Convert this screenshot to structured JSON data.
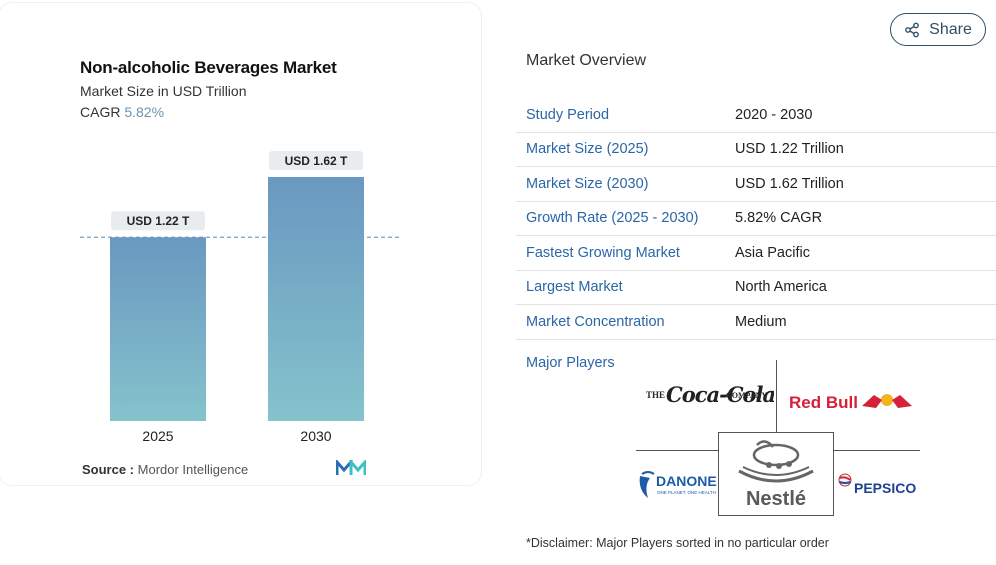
{
  "chart": {
    "title": "Non-alcoholic Beverages Market",
    "subtitle": "Market Size in USD Trillion",
    "cagr_label": "CAGR",
    "cagr_value": "5.82%",
    "source_label": "Source :",
    "source_value": "Mordor Intelligence",
    "colors": {
      "bar_top": "#6a98c0",
      "bar_bottom": "#84c3cc",
      "label_bg": "#e9ecef",
      "dash": "#7aa0c0"
    }
  },
  "chart_data": {
    "type": "bar",
    "categories": [
      "2025",
      "2030"
    ],
    "values": [
      1.22,
      1.62
    ],
    "data_labels": [
      "USD 1.22 T",
      "USD 1.62 T"
    ],
    "title": "Non-alcoholic Beverages Market",
    "subtitle": "Market Size in USD Trillion",
    "xlabel": "",
    "ylabel": "",
    "ylim": [
      0,
      1.62
    ],
    "grid": false,
    "reference_line": {
      "value": 1.22,
      "style": "dashed"
    }
  },
  "share": {
    "label": "Share",
    "icon": "share-icon"
  },
  "overview": {
    "title": "Market Overview",
    "rows": [
      {
        "label": "Study Period",
        "value": "2020 - 2030"
      },
      {
        "label": "Market Size (2025)",
        "value": "USD 1.22 Trillion"
      },
      {
        "label": "Market Size (2030)",
        "value": "USD 1.62 Trillion"
      },
      {
        "label": "Growth Rate (2025 - 2030)",
        "value": "5.82% CAGR"
      },
      {
        "label": "Fastest Growing Market",
        "value": "Asia Pacific"
      },
      {
        "label": "Largest Market",
        "value": "North America"
      },
      {
        "label": "Market Concentration",
        "value": "Medium"
      }
    ]
  },
  "major_players": {
    "label": "Major Players",
    "logos": [
      {
        "name": "The Coca-Cola Company",
        "pre": "THE",
        "brand": "Coca-Cola",
        "post": "COMPANY"
      },
      {
        "name": "Red Bull",
        "brand": "Red Bull"
      },
      {
        "name": "Danone",
        "brand": "DANONE",
        "tagline": "ONE PLANET. ONE HEALTH"
      },
      {
        "name": "Nestlé",
        "brand": "Nestlé"
      },
      {
        "name": "PepsiCo",
        "brand": "PEPSICO"
      }
    ]
  },
  "disclaimer": "*Disclaimer: Major Players sorted in no particular order"
}
